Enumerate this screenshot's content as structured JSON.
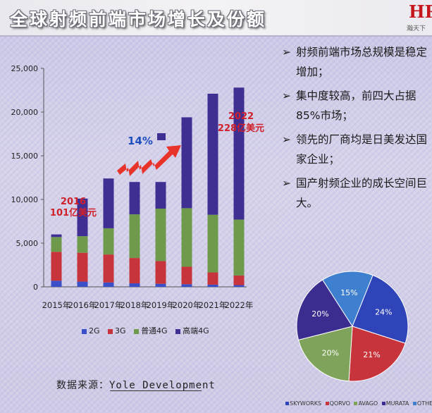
{
  "title": "全球射频前端市场增长及份额",
  "logo": {
    "mark": "HR",
    "text": "瀚天下"
  },
  "bullets": [
    "射频前端市场总规模是稳定增加；",
    "集中度较高，前四大占据85%市场；",
    "领先的厂商均是日美发达国家企业；",
    "国产射频企业的成长空间巨大。"
  ],
  "bullet_arrow": "➢",
  "source": "数据来源：Yole Development",
  "colors": {
    "2G": "#3b4fc8",
    "3G": "#c8343c",
    "4G_normal": "#6f9a4c",
    "4G_high": "#3f2f93",
    "trend_arrow": "#e8332b",
    "annotation_red": "#d0202a",
    "annotation_blue": "#1f4fbf"
  },
  "chart_data": [
    {
      "type": "bar",
      "stacked": true,
      "categories": [
        "2015年",
        "2016年",
        "2017年",
        "2018年",
        "2019年",
        "2020年",
        "2021年",
        "2022年"
      ],
      "series": [
        {
          "name": "2G",
          "values": [
            700,
            600,
            500,
            400,
            350,
            300,
            250,
            200
          ]
        },
        {
          "name": "3G",
          "values": [
            3300,
            3300,
            3200,
            2900,
            2600,
            2000,
            1400,
            1100
          ]
        },
        {
          "name": "普通4G",
          "values": [
            1700,
            1900,
            3000,
            5000,
            6000,
            6700,
            6600,
            6400
          ]
        },
        {
          "name": "高端4G",
          "values": [
            300,
            4300,
            5700,
            3700,
            3050,
            10400,
            13850,
            15100
          ]
        }
      ],
      "yticks": [
        "0",
        "5,000",
        "10,000",
        "15,000",
        "20,000",
        "25,000"
      ],
      "ylim": [
        0,
        25000
      ],
      "grid": false,
      "legend": "bottom",
      "annotations": [
        {
          "line1": "2016",
          "line2": "101亿美元"
        },
        {
          "line1": "2022",
          "line2": "228亿美元"
        },
        {
          "text": "14%"
        }
      ]
    },
    {
      "type": "pie",
      "labels": [
        "SKYWORKS",
        "QORVO",
        "AVAGO",
        "MURATA",
        "OTHERS"
      ],
      "values": [
        24,
        21,
        20,
        20,
        15
      ],
      "value_labels": [
        "24%",
        "21%",
        "20%",
        "20%",
        "15%"
      ],
      "colors": [
        "#2f44b9",
        "#c8343c",
        "#7fa35a",
        "#3a2d8f",
        "#3f7fd0"
      ]
    }
  ]
}
